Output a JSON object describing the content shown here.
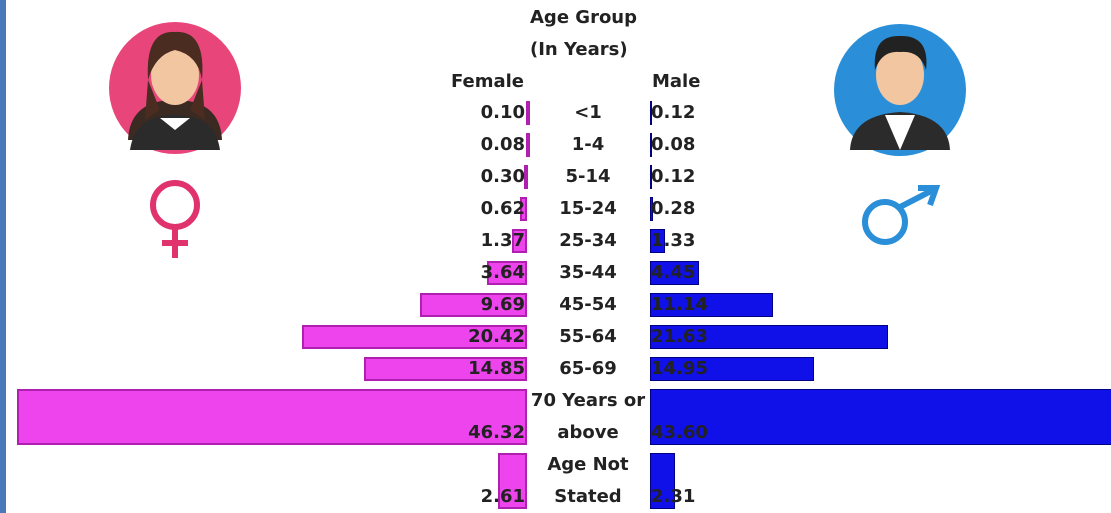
{
  "chart_data": {
    "type": "pyramid",
    "category_header": "Age Group (In Years)",
    "categories": [
      "<1",
      "1-4",
      "5-14",
      "15-24",
      "25-34",
      "35-44",
      "45-54",
      "55-64",
      "65-69",
      "70 Years or above",
      "Age Not Stated"
    ],
    "series": [
      {
        "name": "Female",
        "color": "#ee44ee",
        "values": [
          0.1,
          0.08,
          0.3,
          0.62,
          1.37,
          3.64,
          9.69,
          20.42,
          14.85,
          46.32,
          2.61
        ],
        "value_labels": [
          "0.10",
          "0.08",
          "0.30",
          "0.62",
          "1.37",
          "3.64",
          "9.69",
          "20.42",
          "14.85",
          "46.32",
          "2.61"
        ]
      },
      {
        "name": "Male",
        "color": "#1010e8",
        "values": [
          0.12,
          0.08,
          0.12,
          0.28,
          1.33,
          4.45,
          11.14,
          21.63,
          14.95,
          43.6,
          2.31
        ],
        "value_labels": [
          "0.12",
          "0.08",
          "0.12",
          "0.28",
          "1.33",
          "4.45",
          "11.14",
          "21.63",
          "14.95",
          "43.60",
          "2.31"
        ]
      }
    ]
  }
}
